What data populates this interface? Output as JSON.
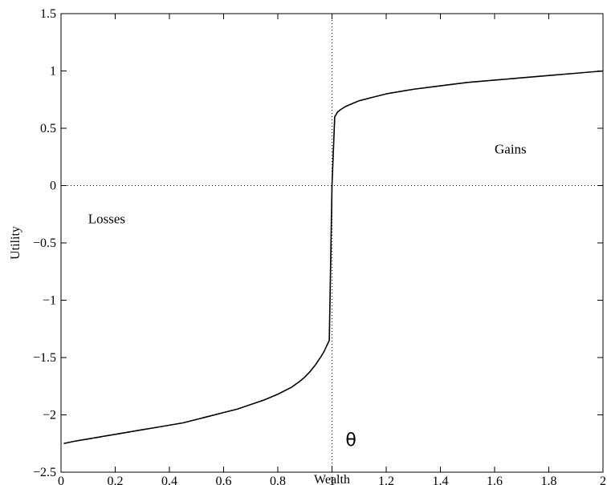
{
  "chart_data": {
    "type": "line",
    "title": "",
    "xlabel": "Wealth",
    "ylabel": "Utility",
    "xlim": [
      0,
      2
    ],
    "ylim": [
      -2.5,
      1.5
    ],
    "x_ticks": [
      0,
      0.2,
      0.4,
      0.6,
      0.8,
      1,
      1.2,
      1.4,
      1.6,
      1.8,
      2
    ],
    "x_tick_labels": [
      "0",
      "0.2",
      "0.4",
      "0.6",
      "0.8",
      "1",
      "1.2",
      "1.4",
      "1.6",
      "1.8",
      "2"
    ],
    "y_ticks": [
      -2.5,
      -2,
      -1.5,
      -1,
      -0.5,
      0,
      0.5,
      1,
      1.5
    ],
    "y_tick_labels": [
      "−2.5",
      "−2",
      "−1.5",
      "−1",
      "−0.5",
      "0",
      "0.5",
      "1",
      "1.5"
    ],
    "grid": false,
    "reference_lines": [
      {
        "orientation": "vertical",
        "value": 1,
        "style": "dotted"
      },
      {
        "orientation": "horizontal",
        "value": 0,
        "style": "dotted"
      }
    ],
    "series": [
      {
        "x": [
          0.01,
          0.05,
          0.1,
          0.15,
          0.2,
          0.25,
          0.3,
          0.35,
          0.4,
          0.45,
          0.5,
          0.55,
          0.6,
          0.65,
          0.7,
          0.75,
          0.8,
          0.85,
          0.88,
          0.9,
          0.92,
          0.94,
          0.96,
          0.97,
          0.98,
          0.99,
          1.0,
          1.01,
          1.02,
          1.03,
          1.05,
          1.08,
          1.1,
          1.15,
          1.2,
          1.3,
          1.4,
          1.5,
          1.6,
          1.7,
          1.8,
          1.9,
          2.0
        ],
        "values": [
          -2.25,
          -2.23,
          -2.21,
          -2.19,
          -2.17,
          -2.15,
          -2.13,
          -2.11,
          -2.09,
          -2.07,
          -2.04,
          -2.01,
          -1.98,
          -1.95,
          -1.91,
          -1.87,
          -1.82,
          -1.76,
          -1.71,
          -1.67,
          -1.62,
          -1.56,
          -1.49,
          -1.45,
          -1.4,
          -1.35,
          0.0,
          0.6,
          0.64,
          0.66,
          0.69,
          0.72,
          0.74,
          0.77,
          0.8,
          0.84,
          0.87,
          0.9,
          0.92,
          0.94,
          0.96,
          0.98,
          1.0
        ]
      }
    ],
    "annotations": [
      {
        "text": "Losses",
        "x": 0.1,
        "y": -0.33
      },
      {
        "text": "Gains",
        "x": 1.6,
        "y": 0.28
      },
      {
        "text": "θ",
        "x": 1.05,
        "y": -2.27,
        "symbol": true
      }
    ]
  }
}
